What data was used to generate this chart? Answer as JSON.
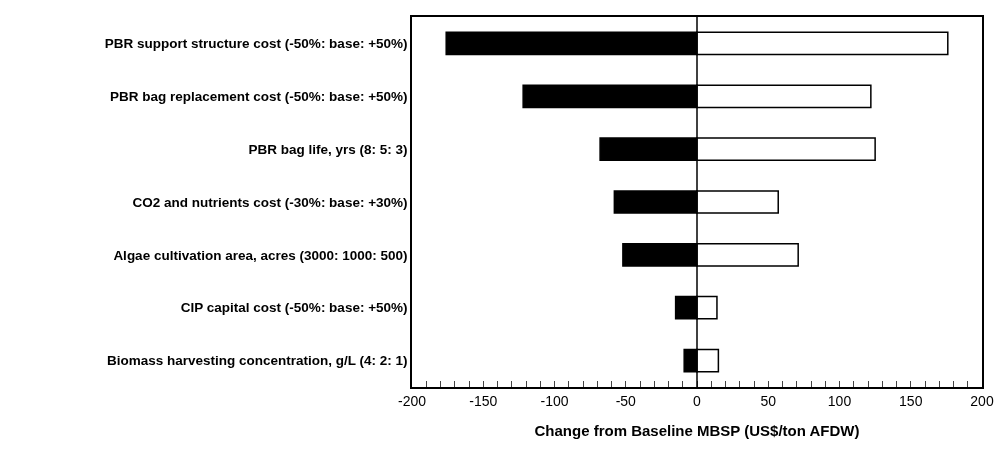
{
  "chart_data": {
    "type": "bar",
    "orientation": "horizontal",
    "stacked": true,
    "xlabel": "Change from Baseline MBSP (US$/ton AFDW)",
    "categories": [
      "PBR support structure cost (-50%: base: +50%)",
      "PBR bag replacement cost (-50%: base: +50%)",
      "PBR bag life, yrs (8: 5: 3)",
      "CO2 and nutrients cost (-30%: base: +30%)",
      "Algae cultivation area, acres (3000: 1000: 500)",
      "CIP capital cost (-50%: base: +50%)",
      "Biomass harvesting concentration, g/L (4: 2: 1)"
    ],
    "series": [
      {
        "color": "#000000",
        "values": [
          -176,
          -122,
          -68,
          -58,
          -52,
          -15,
          -9
        ]
      },
      {
        "color": "#ffffff",
        "values": [
          176,
          122,
          125,
          57,
          71,
          14,
          15
        ]
      }
    ],
    "xlim": [
      -200,
      200
    ],
    "xticks": [
      -200,
      {
        "value": -190,
        "label": null
      },
      {
        "value": -180,
        "label": null
      },
      {
        "value": -170,
        "label": null
      },
      {
        "value": -160,
        "label": null
      },
      -150,
      {
        "value": -140,
        "label": null
      },
      {
        "value": -130,
        "label": null
      },
      {
        "value": -120,
        "label": null
      },
      {
        "value": -110,
        "label": null
      },
      -100,
      {
        "value": -90,
        "label": null
      },
      {
        "value": -80,
        "label": null
      },
      {
        "value": -70,
        "label": null
      },
      {
        "value": -60,
        "label": null
      },
      -50,
      {
        "value": -40,
        "label": null
      },
      {
        "value": -30,
        "label": null
      },
      {
        "value": -20,
        "label": null
      },
      {
        "value": -10,
        "label": null
      },
      0,
      {
        "value": 10,
        "label": null
      },
      {
        "value": 20,
        "label": null
      },
      {
        "value": 30,
        "label": null
      },
      {
        "value": 40,
        "label": null
      },
      50,
      {
        "value": 60,
        "label": null
      },
      {
        "value": 70,
        "label": null
      },
      {
        "value": 80,
        "label": null
      },
      {
        "value": 90,
        "label": null
      },
      100,
      {
        "value": 110,
        "label": null
      },
      {
        "value": 120,
        "label": null
      },
      {
        "value": 130,
        "label": null
      },
      {
        "value": 140,
        "label": null
      },
      150,
      {
        "value": 160,
        "label": null
      },
      {
        "value": 170,
        "label": null
      },
      {
        "value": 180,
        "label": null
      },
      {
        "value": 190,
        "label": null
      },
      200
    ],
    "ref_lines": [
      {
        "axis": "x",
        "value": 0,
        "color": "#000000"
      }
    ]
  }
}
